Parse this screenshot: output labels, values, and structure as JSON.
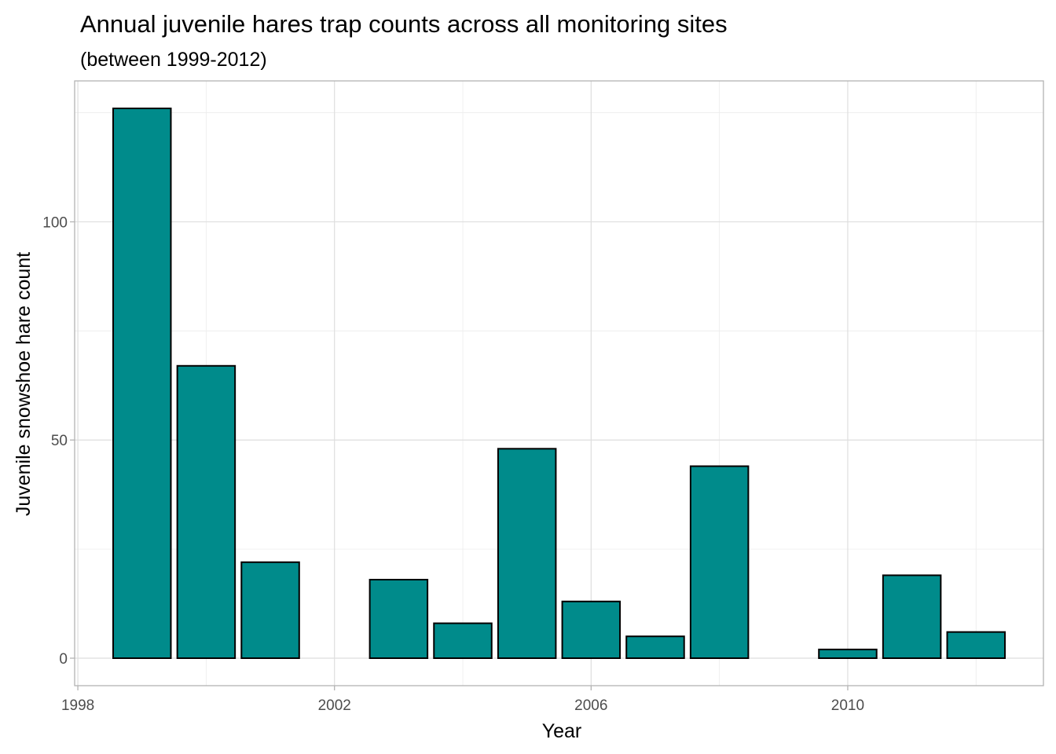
{
  "chart_data": {
    "type": "bar",
    "title": "Annual juvenile hares trap counts across all monitoring sites",
    "subtitle": "(between 1999-2012)",
    "xlabel": "Year",
    "ylabel": "Juvenile snowshoe hare count",
    "x": [
      1999,
      2000,
      2001,
      2002,
      2003,
      2004,
      2005,
      2006,
      2007,
      2008,
      2009,
      2010,
      2011,
      2012
    ],
    "values": [
      126,
      67,
      22,
      0,
      18,
      8,
      48,
      13,
      5,
      44,
      0,
      2,
      19,
      6
    ],
    "xlim": [
      1997.95,
      2013.05
    ],
    "ylim": [
      -6.3,
      132.3
    ],
    "xticks": [
      1998,
      2002,
      2006,
      2010
    ],
    "yticks": [
      0,
      50,
      100
    ],
    "xtick_labels": [
      "1998",
      "2002",
      "2006",
      "2010"
    ],
    "ytick_labels": [
      "0",
      "50",
      "100"
    ],
    "bar_color": "#008B8B",
    "bar_outline": "#000000",
    "grid": true,
    "theme": "light"
  }
}
